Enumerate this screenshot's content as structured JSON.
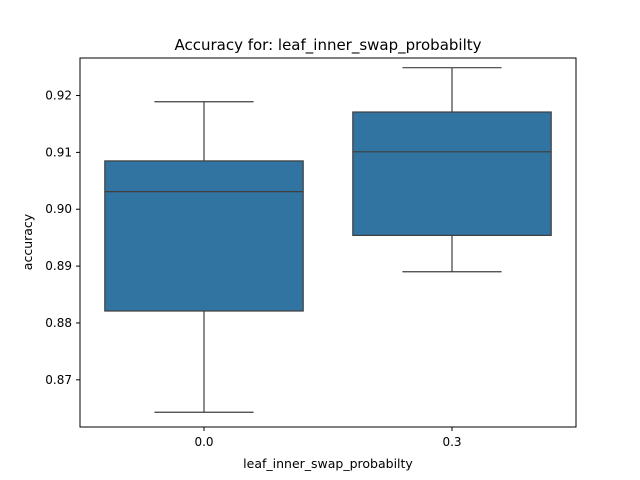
{
  "chart_data": {
    "type": "box",
    "title": "Accuracy for: leaf_inner_swap_probabilty",
    "xlabel": "leaf_inner_swap_probabilty",
    "ylabel": "accuracy",
    "categories": [
      "0.0",
      "0.3"
    ],
    "boxes": [
      {
        "category": "0.0",
        "whisker_low": 0.8643,
        "q1": 0.8821,
        "median": 0.9031,
        "q3": 0.9085,
        "whisker_high": 0.9189
      },
      {
        "category": "0.3",
        "whisker_low": 0.889,
        "q1": 0.8954,
        "median": 0.9101,
        "q3": 0.9171,
        "whisker_high": 0.9249
      }
    ],
    "ylim": [
      0.8617,
      0.9266
    ],
    "yticks": [
      0.87,
      0.88,
      0.89,
      0.9,
      0.91,
      0.92
    ],
    "ytick_labels": [
      "0.87",
      "0.88",
      "0.89",
      "0.90",
      "0.91",
      "0.92"
    ],
    "box_color": "#3274a1",
    "line_color": "#3f3f3f",
    "grid": false
  }
}
